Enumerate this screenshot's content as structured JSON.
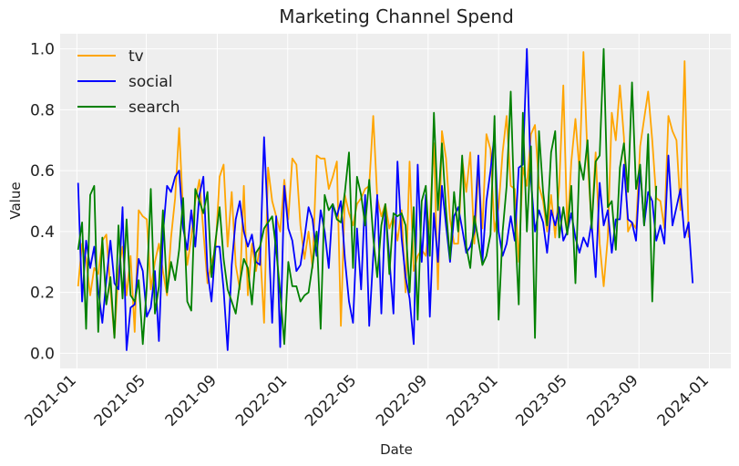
{
  "chart_data": {
    "type": "line",
    "title": "Marketing Channel Spend",
    "xlabel": "Date",
    "ylabel": "Value",
    "xlim": [
      "2020-12-03",
      "2024-02-07"
    ],
    "ylim": [
      -0.05,
      1.05
    ],
    "x_ticks": [
      "2021-01",
      "2021-05",
      "2021-09",
      "2022-01",
      "2022-05",
      "2022-09",
      "2023-01",
      "2023-05",
      "2023-09",
      "2024-01"
    ],
    "y_ticks": [
      "0.0",
      "0.2",
      "0.4",
      "0.6",
      "0.8",
      "1.0"
    ],
    "grid": true,
    "legend_position": "upper-left",
    "x_start": "2021-01-03",
    "x_frequency": "weekly",
    "series": [
      {
        "name": "tv",
        "color": "#FFA500",
        "values": [
          0.22,
          0.36,
          0.31,
          0.19,
          0.28,
          0.26,
          0.37,
          0.39,
          0.21,
          0.05,
          0.27,
          0.35,
          0.19,
          0.32,
          0.07,
          0.47,
          0.45,
          0.44,
          0.21,
          0.3,
          0.36,
          0.27,
          0.19,
          0.38,
          0.51,
          0.74,
          0.46,
          0.29,
          0.38,
          0.5,
          0.57,
          0.4,
          0.23,
          0.3,
          0.34,
          0.58,
          0.62,
          0.35,
          0.53,
          0.29,
          0.21,
          0.55,
          0.19,
          0.36,
          0.27,
          0.35,
          0.1,
          0.61,
          0.5,
          0.45,
          0.4,
          0.57,
          0.44,
          0.64,
          0.62,
          0.42,
          0.31,
          0.4,
          0.28,
          0.65,
          0.64,
          0.64,
          0.54,
          0.58,
          0.63,
          0.09,
          0.52,
          0.46,
          0.42,
          0.49,
          0.51,
          0.54,
          0.55,
          0.78,
          0.51,
          0.45,
          0.49,
          0.41,
          0.45,
          0.37,
          0.47,
          0.2,
          0.63,
          0.27,
          0.32,
          0.34,
          0.32,
          0.44,
          0.69,
          0.21,
          0.73,
          0.64,
          0.44,
          0.36,
          0.36,
          0.64,
          0.53,
          0.66,
          0.36,
          0.6,
          0.41,
          0.72,
          0.67,
          0.4,
          0.48,
          0.66,
          0.78,
          0.55,
          0.54,
          0.3,
          0.61,
          0.55,
          0.72,
          0.75,
          0.55,
          0.5,
          0.4,
          0.52,
          0.38,
          0.55,
          0.88,
          0.4,
          0.63,
          0.77,
          0.6,
          0.99,
          0.64,
          0.42,
          0.66,
          0.36,
          0.22,
          0.38,
          0.79,
          0.7,
          0.88,
          0.71,
          0.4,
          0.43,
          0.41,
          0.68,
          0.77,
          0.86,
          0.7,
          0.51,
          0.5,
          0.41,
          0.78,
          0.73,
          0.7,
          0.47,
          0.96,
          0.38
        ]
      },
      {
        "name": "social",
        "color": "#0000FF",
        "values": [
          0.56,
          0.17,
          0.37,
          0.28,
          0.35,
          0.21,
          0.1,
          0.24,
          0.37,
          0.23,
          0.21,
          0.48,
          0.01,
          0.15,
          0.16,
          0.31,
          0.27,
          0.12,
          0.15,
          0.27,
          0.04,
          0.39,
          0.55,
          0.53,
          0.58,
          0.6,
          0.41,
          0.34,
          0.47,
          0.35,
          0.52,
          0.58,
          0.27,
          0.17,
          0.35,
          0.35,
          0.21,
          0.01,
          0.29,
          0.44,
          0.5,
          0.4,
          0.35,
          0.39,
          0.3,
          0.29,
          0.71,
          0.42,
          0.1,
          0.45,
          0.02,
          0.55,
          0.41,
          0.37,
          0.27,
          0.29,
          0.38,
          0.48,
          0.44,
          0.32,
          0.47,
          0.4,
          0.28,
          0.49,
          0.45,
          0.5,
          0.31,
          0.17,
          0.1,
          0.41,
          0.21,
          0.52,
          0.09,
          0.32,
          0.52,
          0.13,
          0.48,
          0.31,
          0.13,
          0.63,
          0.38,
          0.25,
          0.18,
          0.03,
          0.62,
          0.3,
          0.52,
          0.12,
          0.46,
          0.3,
          0.55,
          0.42,
          0.3,
          0.45,
          0.48,
          0.41,
          0.33,
          0.35,
          0.4,
          0.65,
          0.3,
          0.5,
          0.6,
          0.72,
          0.4,
          0.32,
          0.36,
          0.45,
          0.37,
          0.61,
          0.62,
          1.0,
          0.57,
          0.4,
          0.47,
          0.43,
          0.33,
          0.47,
          0.42,
          0.48,
          0.37,
          0.4,
          0.46,
          0.38,
          0.33,
          0.38,
          0.35,
          0.43,
          0.25,
          0.56,
          0.42,
          0.47,
          0.33,
          0.44,
          0.44,
          0.62,
          0.44,
          0.43,
          0.37,
          0.61,
          0.42,
          0.53,
          0.5,
          0.37,
          0.42,
          0.36,
          0.65,
          0.42,
          0.48,
          0.54,
          0.38,
          0.43,
          0.23
        ]
      },
      {
        "name": "search",
        "color": "#008000",
        "values": [
          0.34,
          0.43,
          0.08,
          0.52,
          0.55,
          0.07,
          0.38,
          0.16,
          0.25,
          0.05,
          0.42,
          0.18,
          0.44,
          0.19,
          0.17,
          0.24,
          0.03,
          0.22,
          0.54,
          0.13,
          0.22,
          0.47,
          0.2,
          0.3,
          0.24,
          0.34,
          0.51,
          0.17,
          0.14,
          0.54,
          0.5,
          0.46,
          0.53,
          0.25,
          0.37,
          0.48,
          0.31,
          0.21,
          0.17,
          0.13,
          0.23,
          0.31,
          0.28,
          0.16,
          0.33,
          0.35,
          0.41,
          0.43,
          0.45,
          0.34,
          0.2,
          0.03,
          0.3,
          0.22,
          0.22,
          0.17,
          0.19,
          0.2,
          0.29,
          0.4,
          0.08,
          0.52,
          0.47,
          0.49,
          0.44,
          0.43,
          0.53,
          0.66,
          0.28,
          0.58,
          0.52,
          0.42,
          0.57,
          0.38,
          0.25,
          0.42,
          0.49,
          0.26,
          0.46,
          0.45,
          0.46,
          0.42,
          0.2,
          0.48,
          0.11,
          0.5,
          0.55,
          0.32,
          0.79,
          0.47,
          0.69,
          0.47,
          0.31,
          0.53,
          0.4,
          0.65,
          0.35,
          0.28,
          0.45,
          0.37,
          0.29,
          0.32,
          0.39,
          0.78,
          0.11,
          0.4,
          0.55,
          0.86,
          0.44,
          0.16,
          0.79,
          0.4,
          0.68,
          0.05,
          0.73,
          0.53,
          0.42,
          0.66,
          0.73,
          0.38,
          0.48,
          0.39,
          0.55,
          0.23,
          0.63,
          0.57,
          0.7,
          0.41,
          0.63,
          0.65,
          1.0,
          0.48,
          0.5,
          0.34,
          0.61,
          0.69,
          0.53,
          0.89,
          0.54,
          0.62,
          0.42,
          0.72,
          0.17,
          0.55
        ]
      }
    ]
  }
}
